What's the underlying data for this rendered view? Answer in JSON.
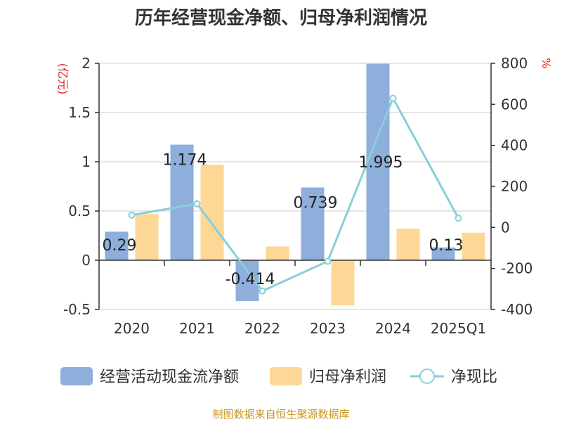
{
  "chart_data": {
    "type": "bar",
    "title": "历年经营现金净额、归母净利润情况",
    "categories": [
      "2020",
      "2021",
      "2022",
      "2023",
      "2024",
      "2025Q1"
    ],
    "y_left": {
      "unit": "(亿元)",
      "ticks": [
        "2",
        "1.5",
        "1",
        "0.5",
        "0",
        "-0.5"
      ],
      "range": [
        -0.5,
        2
      ]
    },
    "y_right": {
      "unit": "%",
      "ticks": [
        "800",
        "600",
        "400",
        "200",
        "0",
        "-200",
        "-400"
      ],
      "range": [
        -400,
        800
      ]
    },
    "series": [
      {
        "name": "经营活动现金流净额",
        "kind": "bar",
        "axis": "left",
        "color": "#8eaedb",
        "values": [
          0.29,
          1.174,
          -0.414,
          0.739,
          1.995,
          0.13
        ],
        "labels": [
          "0.29",
          "1.174",
          "-0.414",
          "0.739",
          "1.995",
          "0.13"
        ]
      },
      {
        "name": "归母净利润",
        "kind": "bar",
        "axis": "left",
        "color": "#fdd795",
        "values": [
          0.47,
          0.97,
          0.14,
          -0.46,
          0.32,
          0.28
        ]
      },
      {
        "name": "净现比",
        "kind": "line",
        "axis": "right",
        "color": "#86d0d8",
        "values": [
          60,
          115,
          -310,
          -165,
          630,
          45
        ]
      }
    ],
    "grid": true,
    "legend_position": "bottom"
  },
  "source": "制图数据来自恒生聚源数据库"
}
